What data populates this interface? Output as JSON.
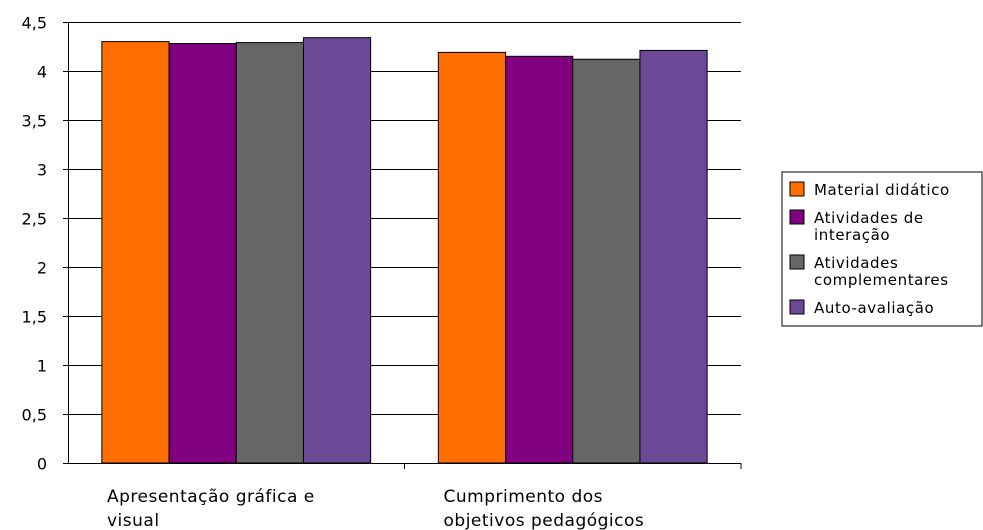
{
  "chart_data": {
    "type": "bar",
    "categories": [
      [
        "Apresentação gráfica e",
        "visual"
      ],
      [
        "Cumprimento dos",
        "objetivos pedagógicos"
      ]
    ],
    "series": [
      {
        "name": [
          "Material didático"
        ],
        "values": [
          4.3,
          4.19
        ],
        "color": "#ff6e00"
      },
      {
        "name": [
          "Atividades de",
          "interação"
        ],
        "values": [
          4.28,
          4.15
        ],
        "color": "#800080"
      },
      {
        "name": [
          "Atividades",
          "complementares"
        ],
        "values": [
          4.29,
          4.12
        ],
        "color": "#666666"
      },
      {
        "name": [
          "Auto-avaliação"
        ],
        "values": [
          4.34,
          4.21
        ],
        "color": "#6b4996"
      }
    ],
    "yticks": [
      "0",
      "0,5",
      "1",
      "1,5",
      "2",
      "2,5",
      "3",
      "3,5",
      "4",
      "4,5"
    ],
    "ylim": [
      0,
      4.5
    ],
    "grid": true,
    "legend": "right"
  }
}
